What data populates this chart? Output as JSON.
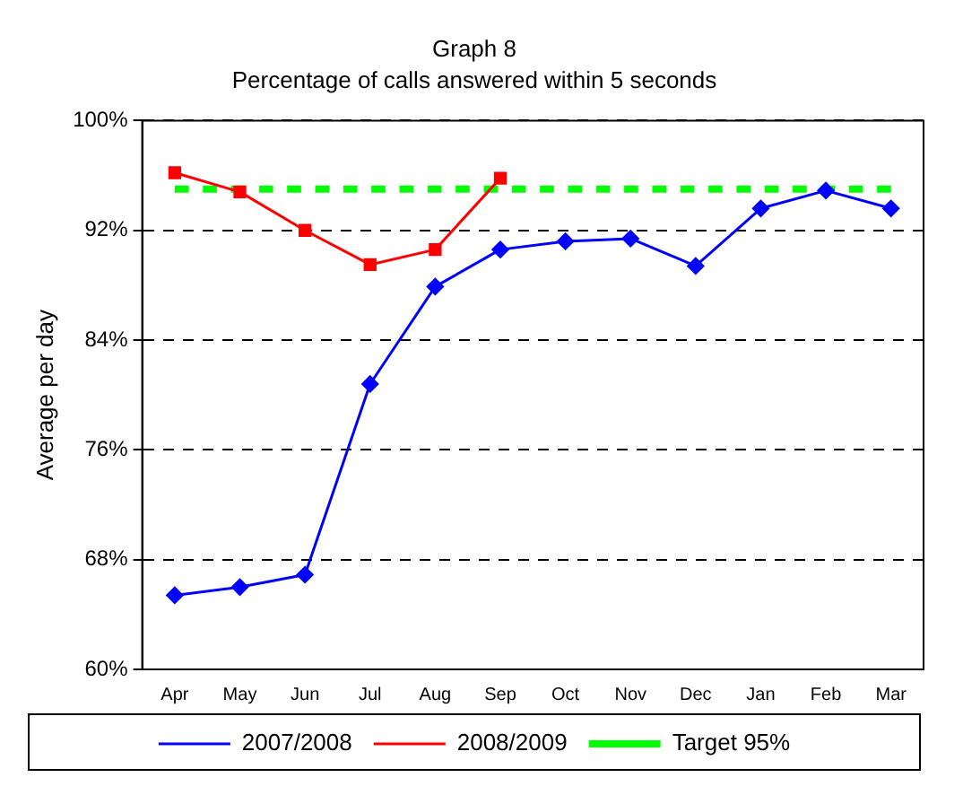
{
  "chart_data": {
    "type": "line",
    "title": "Graph 8",
    "subtitle": "Percentage of calls answered within 5 seconds",
    "ylabel": "Average per day",
    "categories": [
      "Apr",
      "May",
      "Jun",
      "Jul",
      "Aug",
      "Sep",
      "Oct",
      "Nov",
      "Dec",
      "Jan",
      "Feb",
      "Mar"
    ],
    "series": [
      {
        "name": "2007/2008",
        "color": "#0000ff",
        "marker": "diamond",
        "line_style": "solid",
        "values": [
          65.4,
          66.0,
          66.9,
          80.8,
          87.9,
          90.6,
          91.2,
          91.4,
          89.4,
          93.6,
          94.9,
          93.6
        ]
      },
      {
        "name": "2008/2009",
        "color": "#ff0000",
        "marker": "square",
        "line_style": "solid",
        "values": [
          96.2,
          94.8,
          92.0,
          89.5,
          90.6,
          95.8,
          null,
          null,
          null,
          null,
          null,
          null
        ]
      },
      {
        "name": "Target 95%",
        "color": "#00ff00",
        "marker": "none",
        "line_style": "dashed",
        "values": [
          95,
          95,
          95,
          95,
          95,
          95,
          95,
          95,
          95,
          95,
          95,
          95
        ]
      }
    ],
    "ylim": [
      60,
      100
    ],
    "yticks": [
      {
        "value": 60,
        "label": "60%"
      },
      {
        "value": 68,
        "label": "68%"
      },
      {
        "value": 76,
        "label": "76%"
      },
      {
        "value": 84,
        "label": "84%"
      },
      {
        "value": 92,
        "label": "92%"
      },
      {
        "value": 100,
        "label": "100%"
      }
    ],
    "grid": "y",
    "legend": "bottom"
  }
}
